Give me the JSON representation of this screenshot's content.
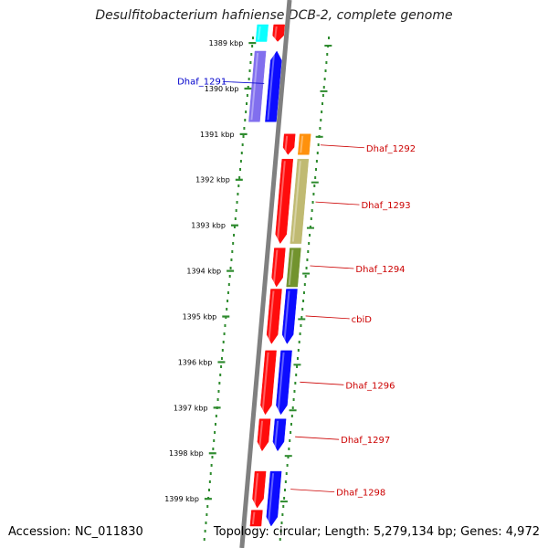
{
  "title": "Desulfitobacterium hafniense DCB-2, complete genome",
  "accession": "Accession: NC_011830",
  "topology": "Topology: circular; Length: 5,279,134 bp; Genes: 4,972",
  "colors": {
    "red": "#ff0000",
    "blue": "#0000ff",
    "slate_blue": "#7b68ee",
    "orange": "#ff8c00",
    "khaki": "#bdb76b",
    "olive": "#6b8e23",
    "cyan": "#00ffff",
    "backbone": "#808080",
    "ticks": "#2e8b2e",
    "label_red": "#cc0000",
    "label_blue": "#0000cc"
  },
  "scale": {
    "start_kbp": 1388.7,
    "end_kbp": 1400.0,
    "ticks": [
      {
        "label": "1389 kbp",
        "kbp": 1389
      },
      {
        "label": "1390 kbp",
        "kbp": 1390
      },
      {
        "label": "1391 kbp",
        "kbp": 1391
      },
      {
        "label": "1392 kbp",
        "kbp": 1392
      },
      {
        "label": "1393 kbp",
        "kbp": 1393
      },
      {
        "label": "1394 kbp",
        "kbp": 1394
      },
      {
        "label": "1395 kbp",
        "kbp": 1395
      },
      {
        "label": "1396 kbp",
        "kbp": 1396
      },
      {
        "label": "1397 kbp",
        "kbp": 1397
      },
      {
        "label": "1398 kbp",
        "kbp": 1398
      },
      {
        "label": "1399 kbp",
        "kbp": 1399
      }
    ]
  },
  "features": [
    {
      "track": "inner1",
      "start_kbp": 1388.6,
      "end_kbp": 1388.97,
      "strand": "-",
      "color": "red"
    },
    {
      "track": "inner2",
      "start_kbp": 1388.6,
      "end_kbp": 1388.97,
      "strand": "none",
      "color": "cyan"
    },
    {
      "track": "inner1",
      "start_kbp": 1389.18,
      "end_kbp": 1390.73,
      "strand": "+",
      "color": "blue"
    },
    {
      "track": "inner2",
      "start_kbp": 1389.18,
      "end_kbp": 1390.73,
      "strand": "none",
      "color": "slate_blue"
    },
    {
      "track": "outer1",
      "start_kbp": 1391.0,
      "end_kbp": 1391.45,
      "strand": "-",
      "color": "red"
    },
    {
      "track": "outer2",
      "start_kbp": 1391.0,
      "end_kbp": 1391.45,
      "strand": "none",
      "color": "orange"
    },
    {
      "track": "outer1",
      "start_kbp": 1391.55,
      "end_kbp": 1393.4,
      "strand": "-",
      "color": "red"
    },
    {
      "track": "outer2",
      "start_kbp": 1391.55,
      "end_kbp": 1393.4,
      "strand": "none",
      "color": "khaki"
    },
    {
      "track": "outer1",
      "start_kbp": 1393.5,
      "end_kbp": 1394.35,
      "strand": "-",
      "color": "red"
    },
    {
      "track": "outer2",
      "start_kbp": 1393.5,
      "end_kbp": 1394.35,
      "strand": "none",
      "color": "olive"
    },
    {
      "track": "outer1",
      "start_kbp": 1394.4,
      "end_kbp": 1395.6,
      "strand": "-",
      "color": "red"
    },
    {
      "track": "outer2",
      "start_kbp": 1394.4,
      "end_kbp": 1395.6,
      "strand": "-",
      "color": "blue"
    },
    {
      "track": "outer1",
      "start_kbp": 1395.75,
      "end_kbp": 1397.15,
      "strand": "-",
      "color": "red"
    },
    {
      "track": "outer2",
      "start_kbp": 1395.75,
      "end_kbp": 1397.15,
      "strand": "-",
      "color": "blue"
    },
    {
      "track": "outer1",
      "start_kbp": 1397.25,
      "end_kbp": 1397.95,
      "strand": "-",
      "color": "red"
    },
    {
      "track": "outer2",
      "start_kbp": 1397.25,
      "end_kbp": 1397.95,
      "strand": "-",
      "color": "blue"
    },
    {
      "track": "outer1",
      "start_kbp": 1398.4,
      "end_kbp": 1399.2,
      "strand": "-",
      "color": "red"
    },
    {
      "track": "outer2",
      "start_kbp": 1398.4,
      "end_kbp": 1399.6,
      "strand": "-",
      "color": "blue"
    },
    {
      "track": "outer1",
      "start_kbp": 1399.25,
      "end_kbp": 1399.6,
      "strand": "none",
      "color": "red"
    }
  ],
  "gene_labels": [
    {
      "text": "Dhaf_1291",
      "kbp": 1389.85,
      "side": "left",
      "color": "label_blue"
    },
    {
      "text": "Dhaf_1292",
      "kbp": 1391.3,
      "side": "right",
      "color": "label_red"
    },
    {
      "text": "Dhaf_1293",
      "kbp": 1392.55,
      "side": "right",
      "color": "label_red"
    },
    {
      "text": "Dhaf_1294",
      "kbp": 1393.95,
      "side": "right",
      "color": "label_red"
    },
    {
      "text": "cbiD",
      "kbp": 1395.05,
      "side": "right",
      "color": "label_red"
    },
    {
      "text": "Dhaf_1296",
      "kbp": 1396.5,
      "side": "right",
      "color": "label_red"
    },
    {
      "text": "Dhaf_1297",
      "kbp": 1397.7,
      "side": "right",
      "color": "label_red"
    },
    {
      "text": "Dhaf_1298",
      "kbp": 1398.85,
      "side": "right",
      "color": "label_red"
    }
  ]
}
